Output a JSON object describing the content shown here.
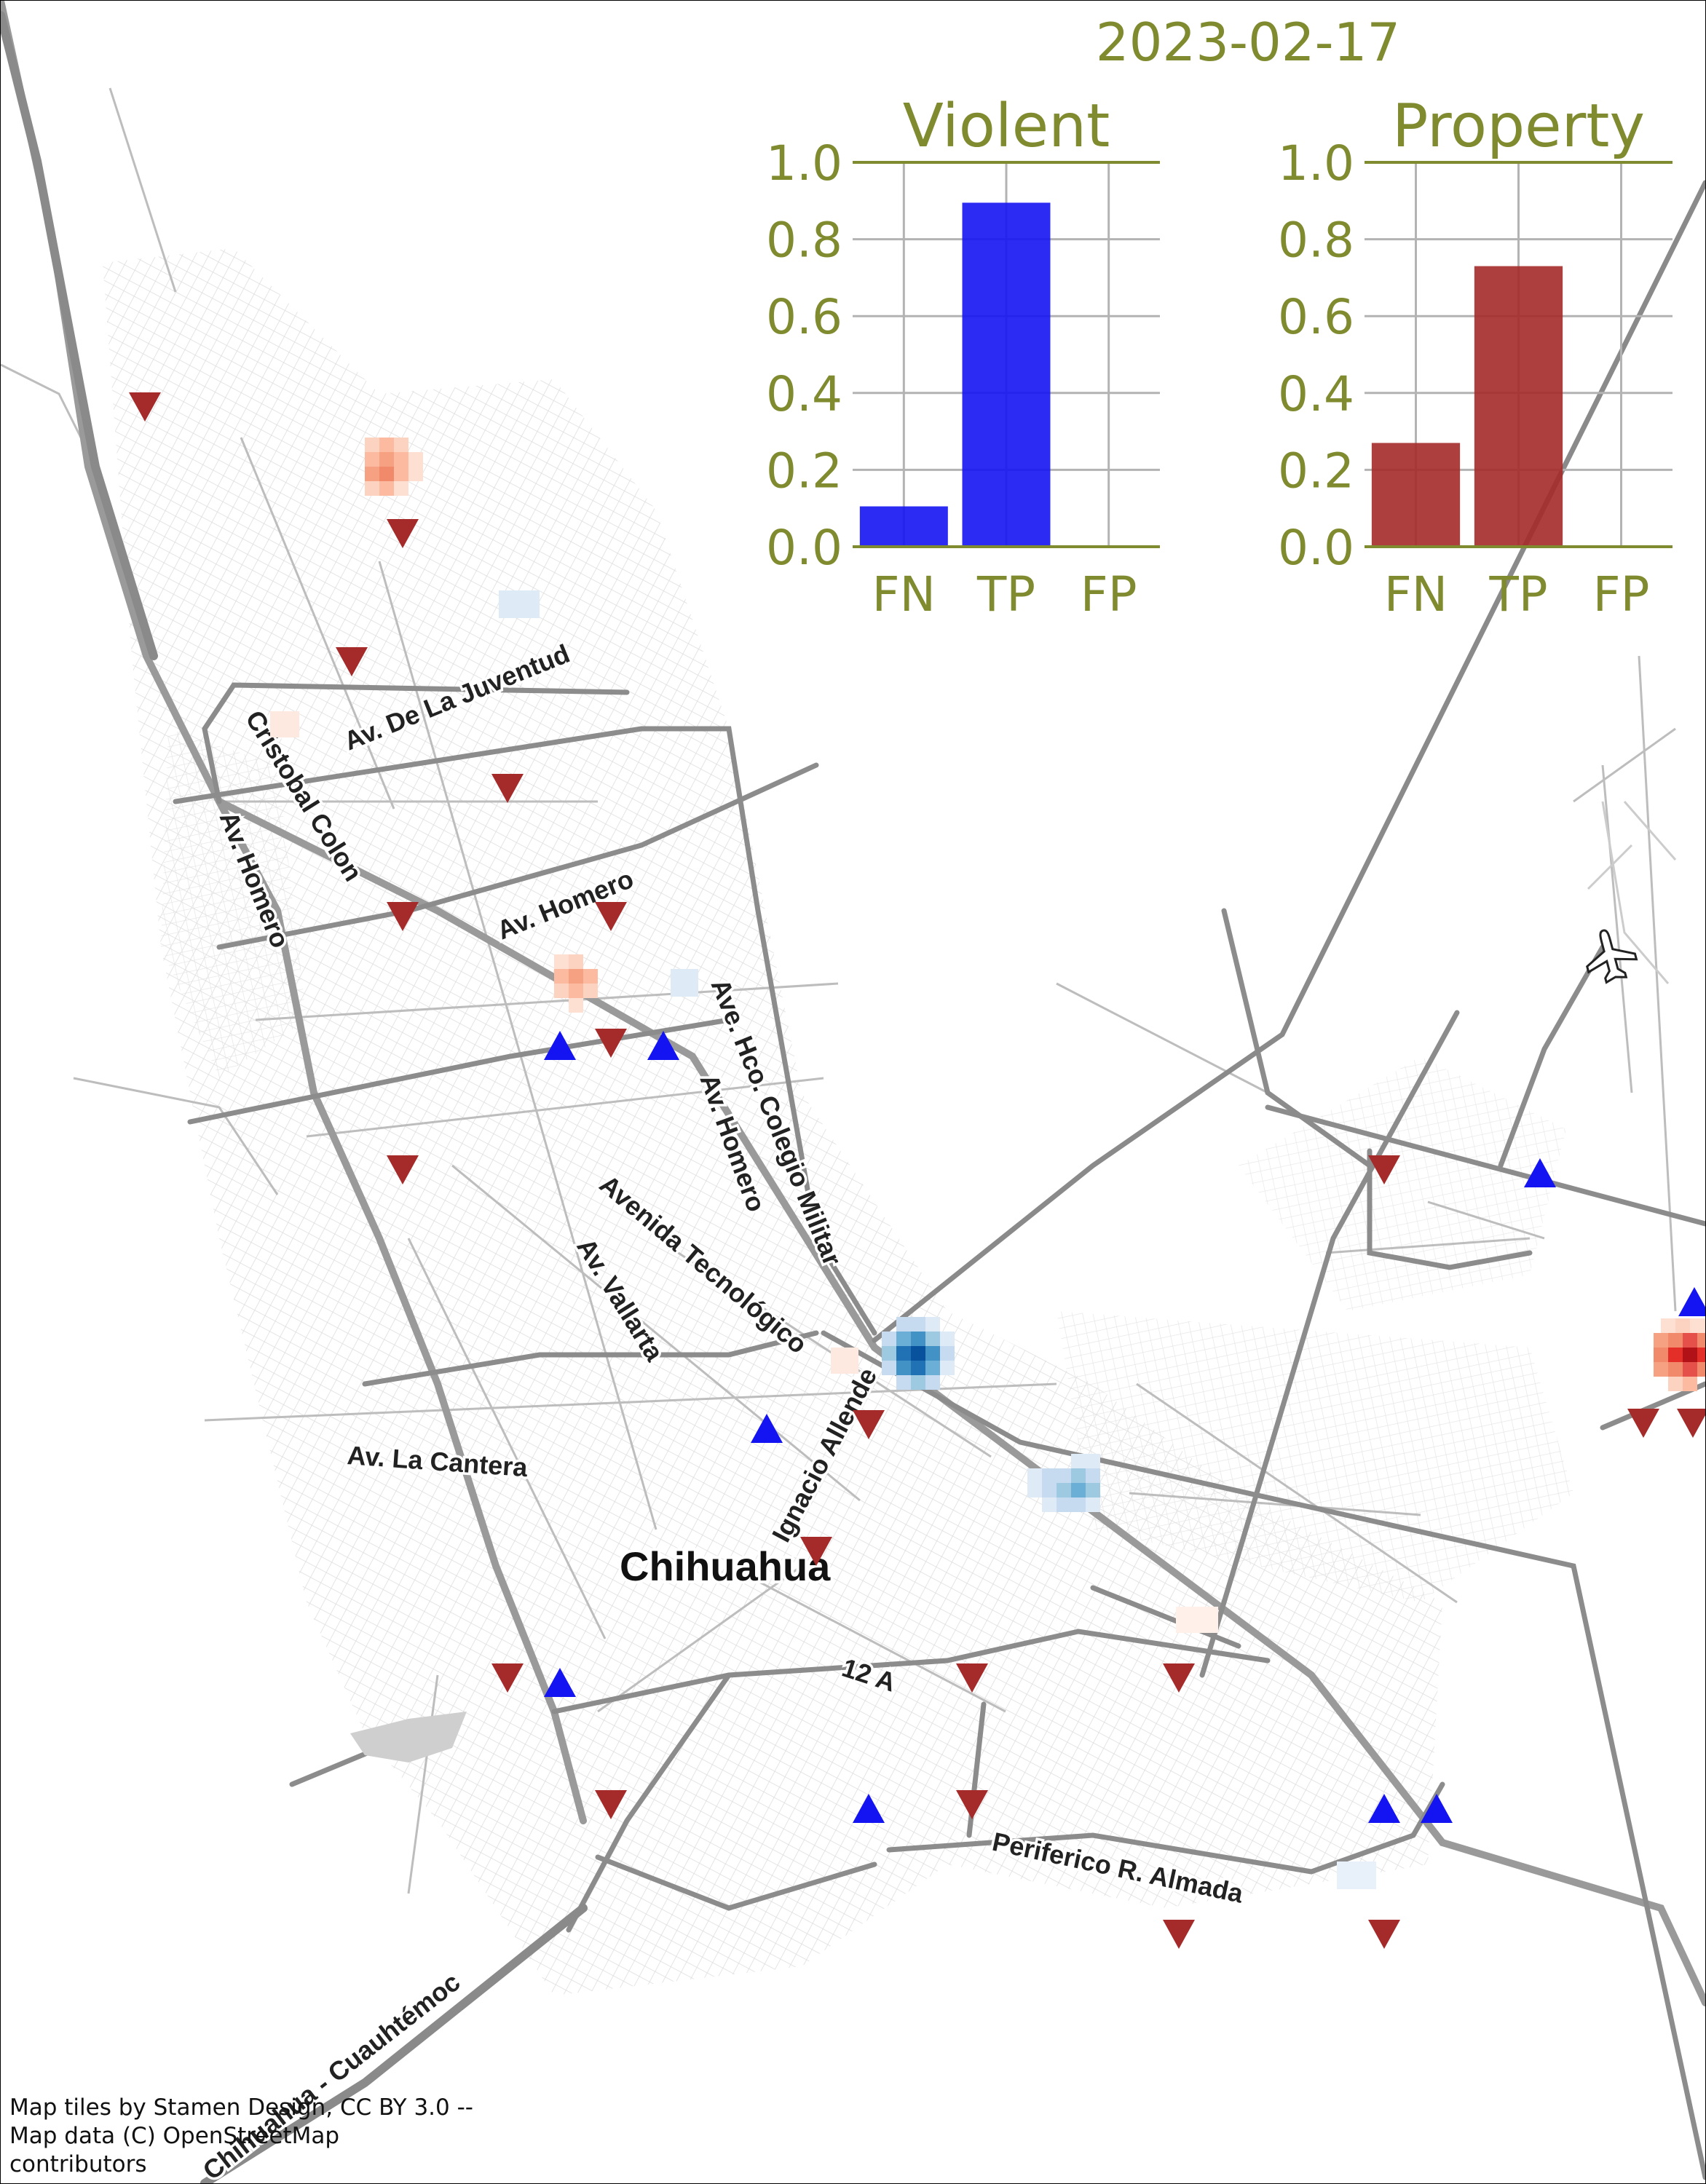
{
  "date": "2023-02-17",
  "attribution": "Map tiles by Stamen Design, CC BY 3.0 -- Map data (C) OpenStreetMap contributors",
  "colors": {
    "text": "#808a2e",
    "violent": "#1414f2",
    "property": "#a52a2a",
    "grid": "#b3b3b3",
    "road": "#8c8c8c"
  },
  "map": {
    "city": "Chihuahua",
    "roads": [
      "Av. De La Juventud",
      "Cristobal Colon",
      "Av. Homero",
      "Av. Homero",
      "Ave. Hco. Colegio Militar",
      "Av. Homero",
      "Avenida Tecnológico",
      "Av. Vallarta",
      "Av. La Cantera",
      "Ignacio Allende",
      "12 A",
      "Periferico R. Almada",
      "Chihuahua - Cuauhtémoc"
    ],
    "icons": [
      "airport-icon"
    ]
  },
  "chart_data": [
    {
      "type": "bar",
      "title": "Violent",
      "categories": [
        "FN",
        "TP",
        "FP"
      ],
      "values": [
        0.105,
        0.895,
        0.0
      ],
      "ylim": [
        0,
        1.0
      ],
      "yticks": [
        "0.0",
        "0.2",
        "0.4",
        "0.6",
        "0.8",
        "1.0"
      ],
      "grid": true,
      "color": "#1414f2"
    },
    {
      "type": "bar",
      "title": "Property",
      "categories": [
        "FN",
        "TP",
        "FP"
      ],
      "values": [
        0.27,
        0.73,
        0.0
      ],
      "ylim": [
        0,
        1.0
      ],
      "yticks": [
        "0.0",
        "0.2",
        "0.4",
        "0.6",
        "0.8",
        "1.0"
      ],
      "grid": true,
      "color": "#a52a2a"
    }
  ]
}
